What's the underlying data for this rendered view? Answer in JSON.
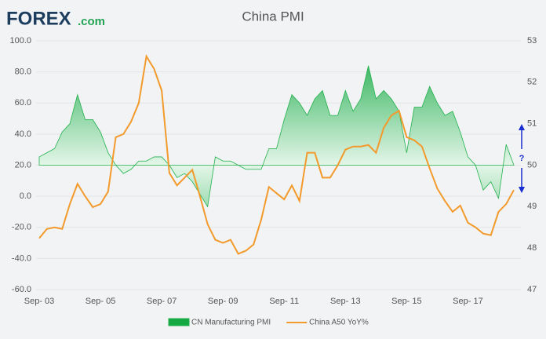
{
  "header": {
    "logo": "FOREX",
    "logo_suffix": ".com"
  },
  "chart_data": {
    "type": "line",
    "title": "China PMI",
    "annotation": "?",
    "categories": [
      "Sep- 03",
      null,
      null,
      null,
      null,
      null,
      null,
      null,
      "Sep- 05",
      null,
      null,
      null,
      null,
      null,
      null,
      null,
      "Sep- 07",
      null,
      null,
      null,
      null,
      null,
      null,
      null,
      "Sep- 09",
      null,
      null,
      null,
      null,
      null,
      null,
      null,
      "Sep- 11",
      null,
      null,
      null,
      null,
      null,
      null,
      null,
      "Sep- 13",
      null,
      null,
      null,
      null,
      null,
      null,
      null,
      "Sep- 15",
      null,
      null,
      null,
      null,
      null,
      null,
      null,
      "Sep- 17",
      null,
      null,
      null,
      null,
      null,
      null
    ],
    "series": [
      {
        "name": "CN Manufacturing PMI",
        "type": "area",
        "axis": "y2",
        "baseline": 50,
        "color": "#22b14c",
        "values": [
          50.2,
          50.3,
          50.4,
          50.8,
          51.0,
          51.7,
          51.1,
          51.1,
          50.8,
          50.3,
          50.0,
          49.8,
          49.9,
          50.1,
          50.1,
          50.2,
          50.2,
          50.0,
          49.7,
          49.8,
          49.6,
          49.3,
          49.0,
          50.2,
          50.1,
          50.1,
          50.0,
          49.9,
          49.9,
          49.9,
          50.4,
          50.4,
          51.1,
          51.7,
          51.5,
          51.2,
          51.6,
          51.8,
          51.2,
          51.2,
          51.8,
          51.3,
          51.6,
          52.4,
          51.6,
          51.8,
          51.6,
          51.3,
          50.3,
          51.4,
          51.4,
          51.9,
          51.5,
          51.2,
          51.3,
          50.8,
          50.2,
          50.0,
          49.4,
          49.6,
          49.2,
          50.5,
          50.0
        ]
      },
      {
        "name": "China A50 YoY%",
        "type": "line",
        "color": "#f39a2c",
        "values": [
          -27,
          -21,
          -20,
          -21,
          -5,
          8,
          0,
          -7,
          -5,
          3,
          38,
          40,
          48,
          60,
          90,
          82,
          68,
          15,
          7,
          12,
          17,
          0,
          -18,
          -28,
          -30,
          -28,
          -37,
          -35,
          -31,
          -15,
          6,
          2,
          -2,
          7,
          -3,
          28,
          28,
          12,
          12,
          20,
          30,
          32,
          32,
          33,
          28,
          44,
          52,
          55,
          38,
          36,
          32,
          18,
          5,
          -3,
          -10,
          -6,
          -17,
          -20,
          -24,
          -25,
          -10,
          -5,
          4
        ]
      }
    ],
    "ylim": [
      -60,
      100
    ],
    "yticks": [
      {
        "value": -60,
        "label": "-60.0"
      },
      {
        "value": -40,
        "label": "-40.0"
      },
      {
        "value": -20,
        "label": "-20.0"
      },
      {
        "value": 0,
        "label": "0.0"
      },
      {
        "value": 20,
        "label": "20.0"
      },
      {
        "value": 40,
        "label": "40.0"
      },
      {
        "value": 60,
        "label": "60.0"
      },
      {
        "value": 80,
        "label": "80.0"
      },
      {
        "value": 100,
        "label": "100.0"
      }
    ],
    "y2lim": [
      47,
      53
    ],
    "y2ticks": [
      47,
      48,
      49,
      50,
      51,
      52,
      53
    ],
    "grid": true,
    "legend": "bottom"
  }
}
